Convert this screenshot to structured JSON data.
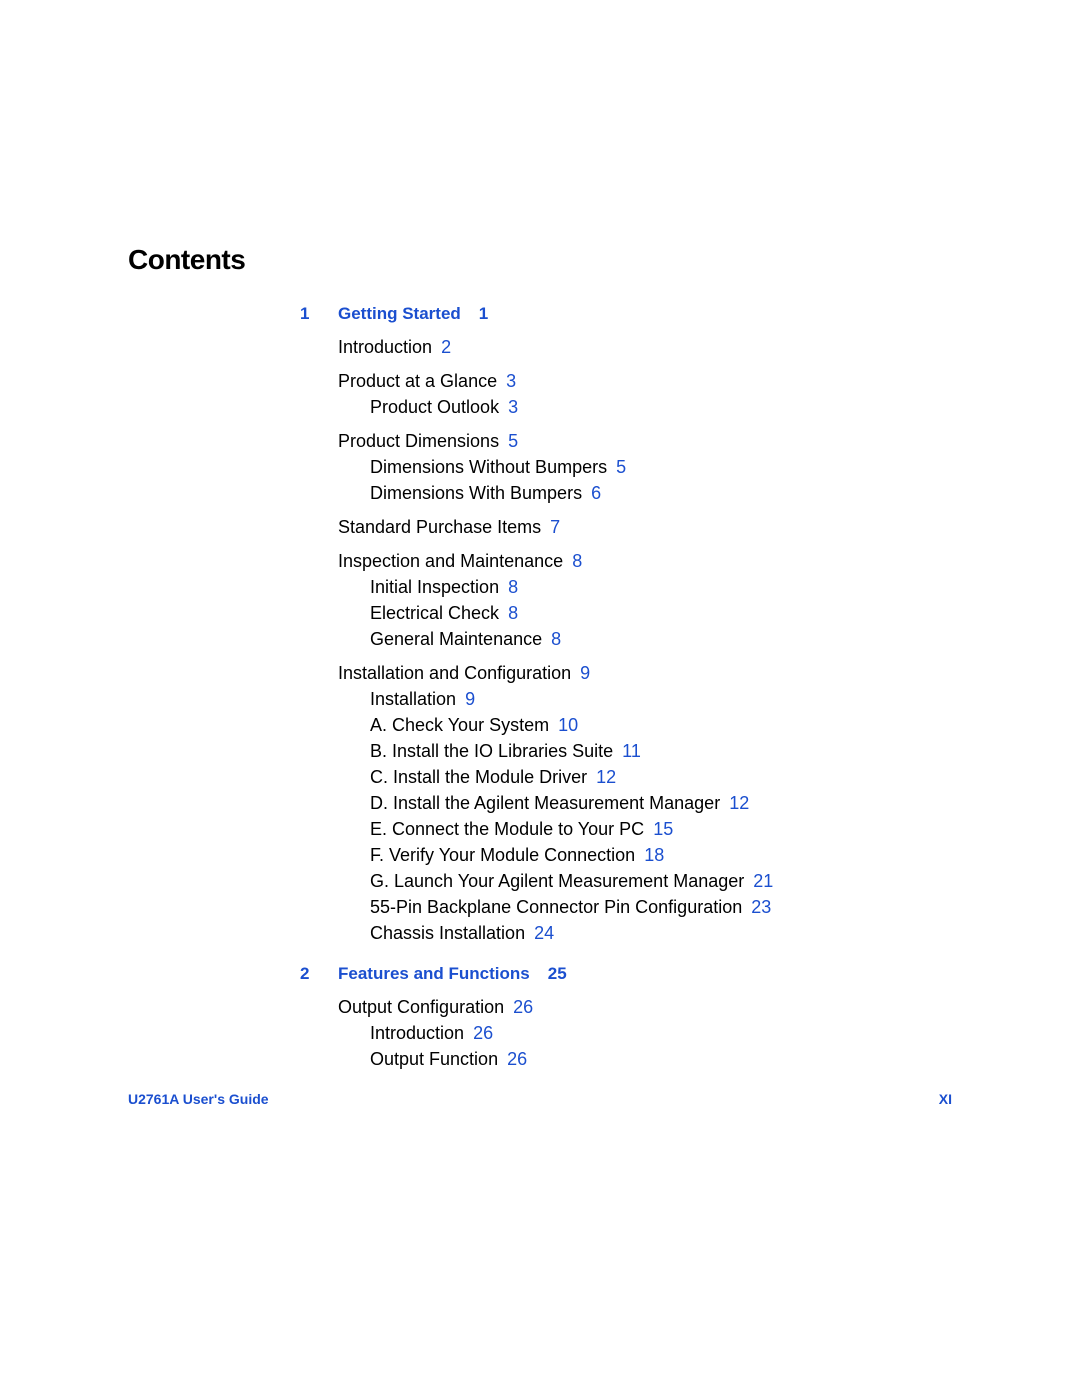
{
  "page": {
    "title": "Contents",
    "footer_left": "U2761A User's Guide",
    "footer_right": "XI"
  },
  "colors": {
    "link": "#1b4fcf",
    "text": "#000000",
    "background": "#ffffff"
  },
  "typography": {
    "title_size_pt": 21,
    "chapter_size_pt": 13,
    "entry_size_pt": 14,
    "footer_size_pt": 11
  },
  "chapters": [
    {
      "num": "1",
      "title": "Getting Started",
      "page": "1",
      "entries": [
        {
          "level": 1,
          "text": "Introduction",
          "page": "2"
        },
        {
          "level": 1,
          "text": "Product at a Glance",
          "page": "3"
        },
        {
          "level": 2,
          "text": "Product Outlook",
          "page": "3"
        },
        {
          "level": 1,
          "text": "Product Dimensions",
          "page": "5"
        },
        {
          "level": 2,
          "text": "Dimensions Without Bumpers",
          "page": "5"
        },
        {
          "level": 2,
          "text": "Dimensions With Bumpers",
          "page": "6"
        },
        {
          "level": 1,
          "text": "Standard Purchase Items",
          "page": "7"
        },
        {
          "level": 1,
          "text": "Inspection and Maintenance",
          "page": "8"
        },
        {
          "level": 2,
          "text": "Initial Inspection",
          "page": "8"
        },
        {
          "level": 2,
          "text": "Electrical Check",
          "page": "8"
        },
        {
          "level": 2,
          "text": "General Maintenance",
          "page": "8"
        },
        {
          "level": 1,
          "text": "Installation and Configuration",
          "page": "9"
        },
        {
          "level": 2,
          "text": "Installation",
          "page": "9"
        },
        {
          "level": 2,
          "text": "A. Check Your System",
          "page": "10"
        },
        {
          "level": 2,
          "text": "B. Install the IO Libraries Suite",
          "page": "11"
        },
        {
          "level": 2,
          "text": "C. Install the Module Driver",
          "page": "12"
        },
        {
          "level": 2,
          "text": "D. Install the Agilent Measurement Manager",
          "page": "12"
        },
        {
          "level": 2,
          "text": "E. Connect the Module to Your PC",
          "page": "15"
        },
        {
          "level": 2,
          "text": "F. Verify Your Module Connection",
          "page": "18"
        },
        {
          "level": 2,
          "text": "G. Launch Your Agilent Measurement Manager",
          "page": "21"
        },
        {
          "level": 2,
          "text": "55-Pin Backplane Connector Pin Configuration",
          "page": "23"
        },
        {
          "level": 2,
          "text": "Chassis Installation",
          "page": "24"
        }
      ]
    },
    {
      "num": "2",
      "title": "Features and Functions",
      "page": "25",
      "entries": [
        {
          "level": 1,
          "text": "Output Configuration",
          "page": "26"
        },
        {
          "level": 2,
          "text": "Introduction",
          "page": "26"
        },
        {
          "level": 2,
          "text": "Output Function",
          "page": "26"
        }
      ]
    }
  ]
}
